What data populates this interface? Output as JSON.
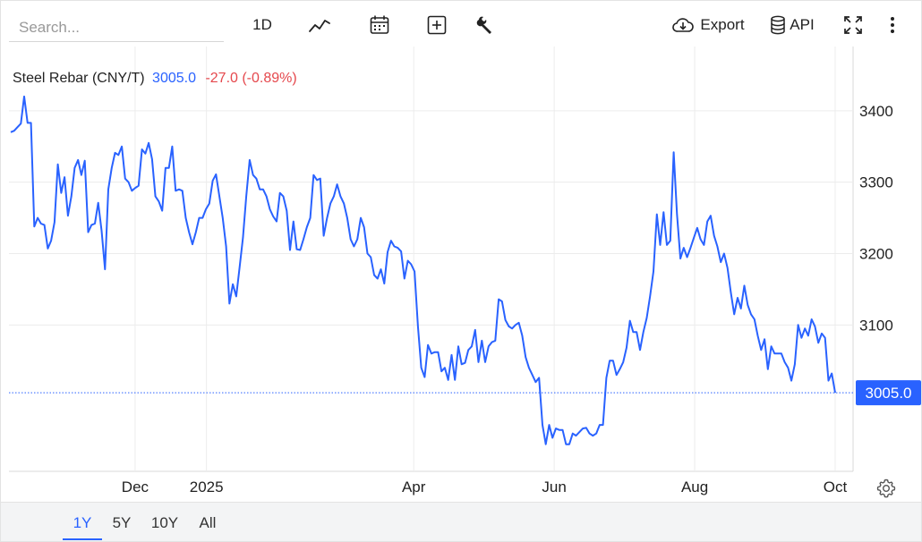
{
  "toolbar": {
    "search_placeholder": "Search...",
    "interval_label": "1D",
    "export_label": "Export",
    "api_label": "API",
    "icons": [
      "line-chart-icon",
      "calendar-icon",
      "plus-box-icon",
      "wrench-icon",
      "cloud-download-icon",
      "database-icon",
      "fullscreen-icon",
      "more-vertical-icon"
    ]
  },
  "legend": {
    "name": "Steel Rebar (CNY/T)",
    "last": "3005.0",
    "change": "-27.0 (-0.89%)"
  },
  "range_tabs": [
    {
      "label": "1Y",
      "active": true
    },
    {
      "label": "5Y",
      "active": false
    },
    {
      "label": "10Y",
      "active": false
    },
    {
      "label": "All",
      "active": false
    }
  ],
  "colors": {
    "line": "#2962ff",
    "negative": "#e5484d",
    "grid": "#ececec",
    "label_bg": "#2962ff"
  },
  "chart_data": {
    "type": "line",
    "title": "Steel Rebar (CNY/T)",
    "x_tick_labels": [
      "Dec",
      "2025",
      "Apr",
      "Jun",
      "Aug",
      "Oct"
    ],
    "y_tick_labels": [
      "3100",
      "3200",
      "3300",
      "3400"
    ],
    "ylim": [
      2895,
      3490
    ],
    "last_value": 3005.0,
    "last_value_label": "3005.0",
    "grid": true,
    "series": [
      {
        "name": "Steel Rebar (CNY/T)",
        "x_range": [
          "2024-10-08",
          "2025-10-01"
        ],
        "values": [
          3370,
          3372,
          3377,
          3382,
          3420,
          3383,
          3383,
          3238,
          3250,
          3242,
          3240,
          3207,
          3218,
          3244,
          3325,
          3285,
          3307,
          3253,
          3280,
          3320,
          3331,
          3310,
          3330,
          3230,
          3240,
          3242,
          3271,
          3232,
          3178,
          3290,
          3320,
          3341,
          3338,
          3350,
          3305,
          3300,
          3288,
          3292,
          3295,
          3346,
          3340,
          3355,
          3332,
          3280,
          3273,
          3260,
          3320,
          3320,
          3350,
          3288,
          3290,
          3288,
          3250,
          3230,
          3213,
          3230,
          3250,
          3250,
          3262,
          3270,
          3302,
          3311,
          3280,
          3250,
          3210,
          3130,
          3157,
          3140,
          3180,
          3222,
          3280,
          3331,
          3310,
          3305,
          3290,
          3290,
          3280,
          3262,
          3252,
          3245,
          3285,
          3280,
          3260,
          3205,
          3245,
          3206,
          3205,
          3220,
          3237,
          3250,
          3310,
          3303,
          3305,
          3225,
          3250,
          3270,
          3280,
          3297,
          3280,
          3270,
          3250,
          3220,
          3210,
          3220,
          3250,
          3237,
          3200,
          3195,
          3170,
          3165,
          3178,
          3158,
          3202,
          3218,
          3210,
          3208,
          3203,
          3165,
          3190,
          3185,
          3175,
          3098,
          3040,
          3027,
          3072,
          3060,
          3062,
          3062,
          3035,
          3040,
          3023,
          3058,
          3023,
          3070,
          3045,
          3047,
          3065,
          3070,
          3093,
          3048,
          3078,
          3048,
          3070,
          3076,
          3078,
          3136,
          3133,
          3107,
          3098,
          3095,
          3100,
          3103,
          3085,
          3055,
          3040,
          3030,
          3020,
          3026,
          2960,
          2933,
          2960,
          2942,
          2955,
          2953,
          2953,
          2933,
          2933,
          2948,
          2945,
          2950,
          2955,
          2956,
          2948,
          2945,
          2948,
          2960,
          2960,
          3026,
          3050,
          3050,
          3030,
          3038,
          3048,
          3068,
          3106,
          3090,
          3090,
          3065,
          3090,
          3110,
          3140,
          3175,
          3255,
          3212,
          3258,
          3212,
          3218,
          3342,
          3255,
          3193,
          3208,
          3195,
          3208,
          3222,
          3236,
          3220,
          3212,
          3245,
          3253,
          3225,
          3210,
          3188,
          3200,
          3180,
          3145,
          3115,
          3138,
          3123,
          3155,
          3128,
          3115,
          3108,
          3085,
          3065,
          3080,
          3038,
          3070,
          3060,
          3060,
          3060,
          3048,
          3040,
          3022,
          3045,
          3100,
          3082,
          3095,
          3085,
          3108,
          3098,
          3075,
          3088,
          3082,
          3022,
          3032,
          3005
        ]
      }
    ]
  }
}
